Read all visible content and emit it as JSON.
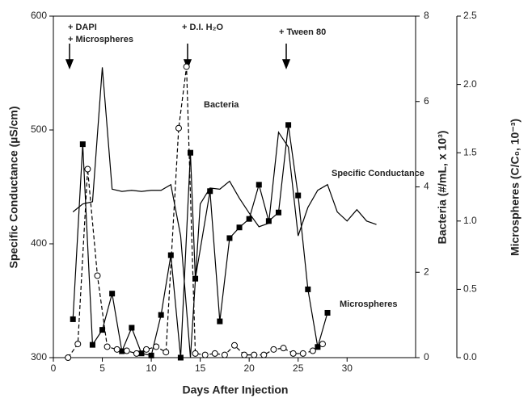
{
  "chart_data": {
    "type": "line",
    "xlabel": "Days After Injection",
    "ylabel": "Specific Conductance (µS/cm)",
    "y2label": "Bacteria (#/mL, x 10³)",
    "y3label": "Microspheres (C/C₀, 10⁻³)",
    "xlim": [
      0,
      37
    ],
    "xticks": [
      0,
      5,
      10,
      15,
      20,
      25,
      30
    ],
    "ylim": [
      300,
      600
    ],
    "yticks": [
      300,
      400,
      500,
      600
    ],
    "y2lim": [
      0,
      8
    ],
    "y2ticks": [
      0,
      2,
      4,
      6,
      8
    ],
    "y3lim": [
      0,
      2.5
    ],
    "y3ticks": [
      {
        "value": 0,
        "label": "0.0"
      },
      0.5,
      {
        "value": 1,
        "label": "1.0"
      },
      1.5,
      {
        "value": 2,
        "label": "2.0"
      },
      2.5
    ],
    "annotations": [
      "+ DAPI",
      "+ Microspheres",
      "+ D.I. H₂O",
      "+ Tween 80"
    ],
    "series": [
      {
        "name": "Specific Conductance",
        "color": "#000",
        "marker": "none",
        "dash": false,
        "x": [
          2,
          3,
          4,
          5,
          6,
          7,
          8,
          9,
          10,
          11,
          12,
          13,
          14,
          15,
          16,
          17,
          18,
          19,
          20,
          21,
          22,
          23,
          24,
          25,
          26,
          27,
          28,
          29,
          30,
          31,
          32,
          33
        ],
        "values": [
          428,
          435,
          437,
          555,
          448,
          446,
          447,
          446,
          447,
          447,
          452,
          407,
          300,
          435,
          449,
          448,
          455,
          440,
          427,
          415,
          418,
          498,
          485,
          407,
          432,
          447,
          452,
          428,
          420,
          430,
          420,
          417
        ]
      },
      {
        "name": "Bacteria",
        "color": "#000",
        "marker": "square",
        "dash": false,
        "axis": "y2",
        "x": [
          2,
          3,
          4,
          5,
          6,
          7,
          8,
          9,
          10,
          11,
          12,
          13,
          14,
          14.5,
          16,
          17,
          18,
          19,
          20,
          21,
          22,
          23,
          24,
          25,
          26,
          27,
          28
        ],
        "values": [
          0.9,
          5.0,
          0.3,
          0.65,
          1.5,
          0.15,
          0.7,
          0.1,
          0.05,
          1.0,
          2.4,
          0,
          4.8,
          1.85,
          3.9,
          0.85,
          2.8,
          3.05,
          3.25,
          4.05,
          3.2,
          3.4,
          5.45,
          3.8,
          1.6,
          0.25,
          1.05
        ]
      },
      {
        "name": "Microspheres",
        "color": "#000",
        "marker": "circle",
        "dash": true,
        "axis": "y3",
        "x": [
          1.5,
          2.5,
          3.5,
          4.5,
          5.5,
          6.5,
          7.5,
          8.5,
          9.5,
          10.5,
          11.5,
          12.8,
          13.6,
          14.5,
          15.5,
          16.5,
          17.5,
          18.5,
          19.5,
          20.5,
          21.5,
          22.5,
          23.5,
          24.5,
          25.5,
          26.5,
          27.5
        ],
        "values": [
          0,
          0.1,
          1.38,
          0.6,
          0.08,
          0.06,
          0.05,
          0.03,
          0.06,
          0.08,
          0.04,
          1.68,
          2.13,
          0.03,
          0.02,
          0.03,
          0.02,
          0.09,
          0.02,
          0.02,
          0.02,
          0.06,
          0.07,
          0.03,
          0.03,
          0.05,
          0.1
        ]
      }
    ]
  }
}
